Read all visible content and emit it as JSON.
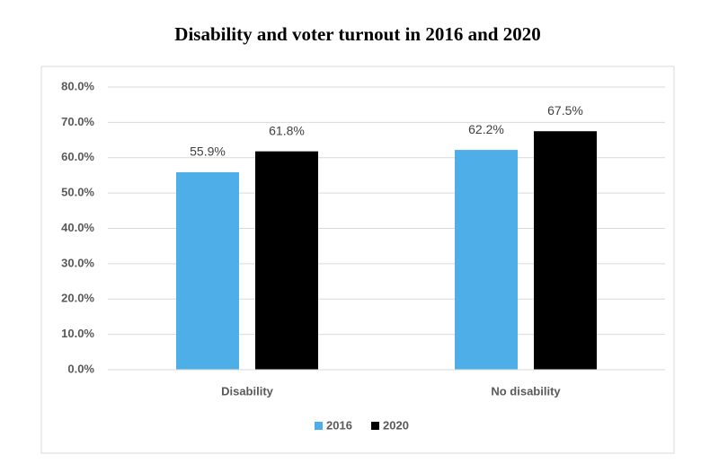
{
  "chart_data": {
    "type": "bar",
    "title": "Disability and voter turnout in 2016 and 2020",
    "categories": [
      "Disability",
      "No disability"
    ],
    "series": [
      {
        "name": "2016",
        "color": "#4daee8",
        "values": [
          55.9,
          62.2
        ],
        "value_labels": [
          "55.9%",
          "62.2%"
        ]
      },
      {
        "name": "2020",
        "color": "#000000",
        "values": [
          61.8,
          67.5
        ],
        "value_labels": [
          "61.8%",
          "67.5%"
        ]
      }
    ],
    "ylim": [
      0,
      80
    ],
    "yticks": [
      {
        "value": 0,
        "label": "0.0%"
      },
      {
        "value": 10,
        "label": "10.0%"
      },
      {
        "value": 20,
        "label": "20.0%"
      },
      {
        "value": 30,
        "label": "30.0%"
      },
      {
        "value": 40,
        "label": "40.0%"
      },
      {
        "value": 50,
        "label": "50.0%"
      },
      {
        "value": 60,
        "label": "60.0%"
      },
      {
        "value": 70,
        "label": "70.0%"
      },
      {
        "value": 80,
        "label": "80.0%"
      }
    ],
    "grid": true
  }
}
